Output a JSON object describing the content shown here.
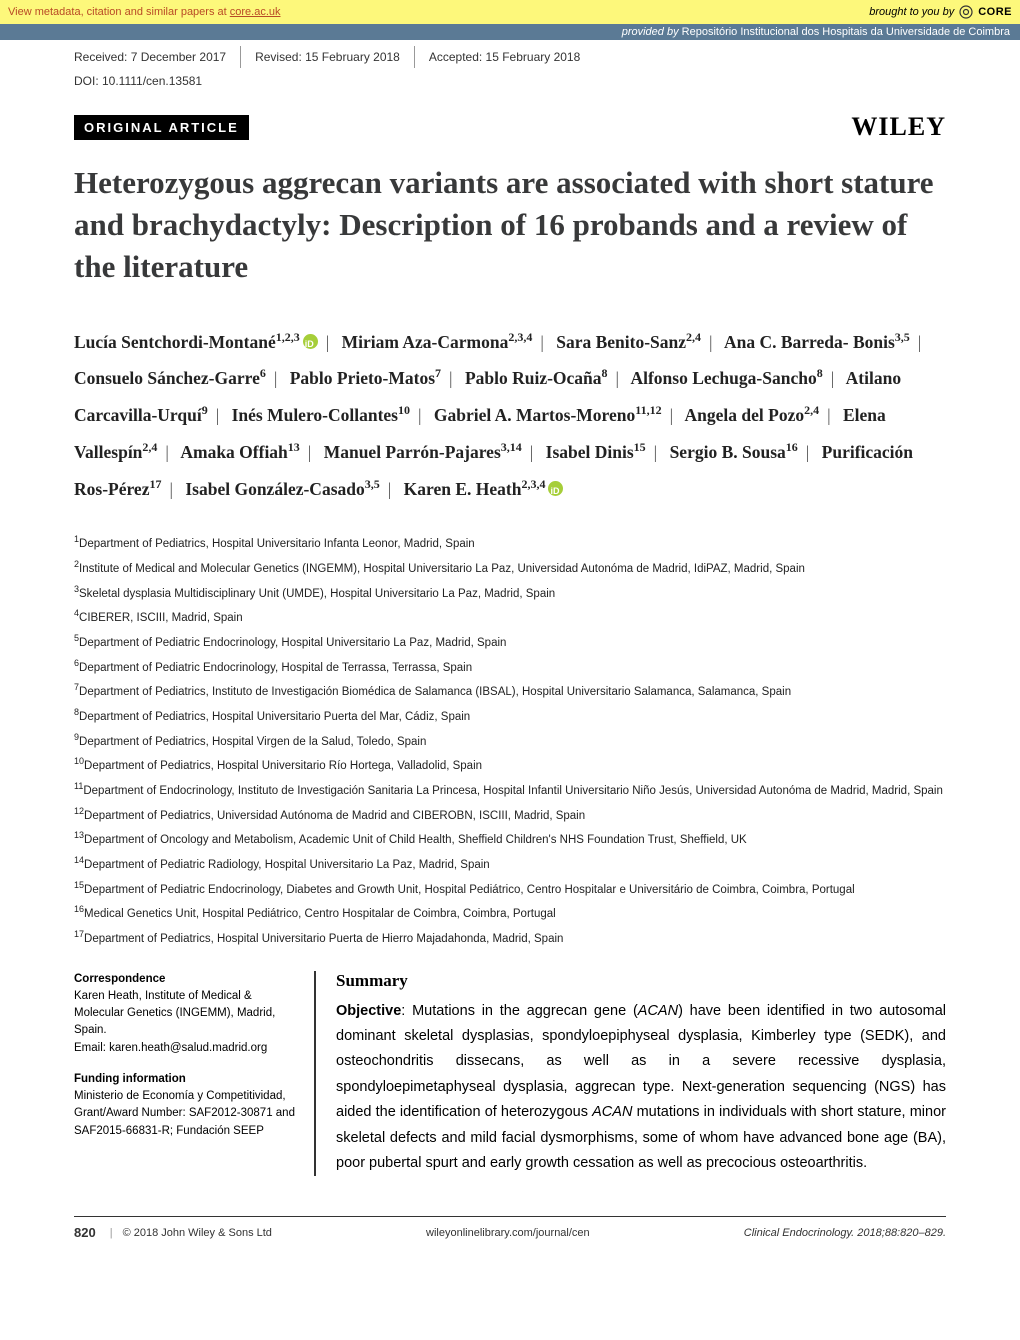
{
  "core": {
    "left_prefix": "View metadata, citation and similar papers at ",
    "left_link": "core.ac.uk",
    "right_prefix": "brought to you by ",
    "right_brand": "CORE"
  },
  "repo": {
    "provided_by": "provided by ",
    "repo_name": "Repositório Institucional dos Hospitais da Universidade de Coimbra"
  },
  "meta": {
    "received": "Received: 7 December 2017",
    "revised": "Revised: 15 February 2018",
    "accepted": "Accepted: 15 February 2018",
    "doi": "DOI: 10.1111/cen.13581"
  },
  "article_type": "ORIGINAL ARTICLE",
  "publisher": "WILEY",
  "title": "Heterozygous aggrecan variants are associated with short stature and brachydactyly: Description of 16 probands and a review of the literature",
  "authors": [
    {
      "name": "Lucía Sentchordi-Montané",
      "sup": "1,2,3",
      "orcid": true
    },
    {
      "name": "Miriam Aza-Carmona",
      "sup": "2,3,4"
    },
    {
      "name": "Sara Benito-Sanz",
      "sup": "2,4"
    },
    {
      "name": "Ana C. Barreda- Bonis",
      "sup": "3,5"
    },
    {
      "name": "Consuelo Sánchez-Garre",
      "sup": "6"
    },
    {
      "name": "Pablo Prieto-Matos",
      "sup": "7"
    },
    {
      "name": "Pablo Ruiz-Ocaña",
      "sup": "8"
    },
    {
      "name": "Alfonso Lechuga-Sancho",
      "sup": "8"
    },
    {
      "name": "Atilano Carcavilla-Urquí",
      "sup": "9"
    },
    {
      "name": "Inés Mulero-Collantes",
      "sup": "10"
    },
    {
      "name": "Gabriel A. Martos-Moreno",
      "sup": "11,12"
    },
    {
      "name": "Angela del Pozo",
      "sup": "2,4"
    },
    {
      "name": "Elena Vallespín",
      "sup": "2,4"
    },
    {
      "name": "Amaka Offiah",
      "sup": "13"
    },
    {
      "name": "Manuel Parrón-Pajares",
      "sup": "3,14"
    },
    {
      "name": "Isabel Dinis",
      "sup": "15"
    },
    {
      "name": "Sergio B. Sousa",
      "sup": "16"
    },
    {
      "name": "Purificación Ros-Pérez",
      "sup": "17"
    },
    {
      "name": "Isabel González-Casado",
      "sup": "3,5"
    },
    {
      "name": "Karen E. Heath",
      "sup": "2,3,4",
      "orcid": true
    }
  ],
  "affiliations": [
    {
      "n": "1",
      "text": "Department of Pediatrics, Hospital Universitario Infanta Leonor, Madrid, Spain"
    },
    {
      "n": "2",
      "text": "Institute of Medical and Molecular Genetics (INGEMM), Hospital Universitario La Paz, Universidad Autonóma de Madrid, IdiPAZ, Madrid, Spain"
    },
    {
      "n": "3",
      "text": "Skeletal dysplasia Multidisciplinary Unit (UMDE), Hospital Universitario La Paz, Madrid, Spain"
    },
    {
      "n": "4",
      "text": "CIBERER, ISCIII, Madrid, Spain"
    },
    {
      "n": "5",
      "text": "Department of Pediatric Endocrinology, Hospital Universitario La Paz, Madrid, Spain"
    },
    {
      "n": "6",
      "text": "Department of Pediatric Endocrinology, Hospital de Terrassa, Terrassa, Spain"
    },
    {
      "n": "7",
      "text": "Department of Pediatrics, Instituto de Investigación Biomédica de Salamanca (IBSAL), Hospital Universitario Salamanca, Salamanca, Spain"
    },
    {
      "n": "8",
      "text": "Department of Pediatrics, Hospital Universitario Puerta del Mar, Cádiz, Spain"
    },
    {
      "n": "9",
      "text": "Department of Pediatrics, Hospital Virgen de la Salud, Toledo, Spain"
    },
    {
      "n": "10",
      "text": "Department of Pediatrics, Hospital Universitario Río Hortega, Valladolid, Spain"
    },
    {
      "n": "11",
      "text": "Department of Endocrinology, Instituto de Investigación Sanitaria La Princesa, Hospital Infantil Universitario Niño Jesús, Universidad Autonóma de Madrid, Madrid, Spain"
    },
    {
      "n": "12",
      "text": "Department of Pediatrics, Universidad Autónoma de Madrid and CIBEROBN, ISCIII, Madrid, Spain"
    },
    {
      "n": "13",
      "text": "Department of Oncology and Metabolism, Academic Unit of Child Health, Sheffield Children's NHS Foundation Trust, Sheffield, UK"
    },
    {
      "n": "14",
      "text": "Department of Pediatric Radiology, Hospital Universitario La Paz, Madrid, Spain"
    },
    {
      "n": "15",
      "text": "Department of Pediatric Endocrinology, Diabetes and Growth Unit, Hospital Pediátrico, Centro Hospitalar e Universitário de Coimbra, Coimbra, Portugal"
    },
    {
      "n": "16",
      "text": "Medical Genetics Unit, Hospital Pediátrico, Centro Hospitalar de Coimbra, Coimbra, Portugal"
    },
    {
      "n": "17",
      "text": "Department of Pediatrics, Hospital Universitario Puerta de Hierro Majadahonda, Madrid, Spain"
    }
  ],
  "correspondence": {
    "heading": "Correspondence",
    "body1": "Karen Heath, Institute of Medical & Molecular Genetics (INGEMM), Madrid, Spain.",
    "body2": "Email: karen.heath@salud.madrid.org"
  },
  "funding": {
    "heading": "Funding information",
    "body": "Ministerio de Economía y Competitividad, Grant/Award Number: SAF2012-30871 and SAF2015-66831-R; Fundación SEEP"
  },
  "summary": {
    "heading": "Summary",
    "objective_label": "Objective",
    "body": ": Mutations in the aggrecan gene (ACAN) have been identified in two autosomal dominant skeletal dysplasias, spondyloepiphyseal dysplasia, Kimberley type (SEDK), and osteochondritis dissecans, as well as in a severe recessive dysplasia, spondyloepimetaphyseal dysplasia, aggrecan type. Next-generation sequencing (NGS) has aided the identification of heterozygous ACAN mutations in individuals with short stature, minor skeletal defects and mild facial dysmorphisms, some of whom have advanced bone age (BA), poor pubertal spurt and early growth cessation as well as precocious osteoarthritis."
  },
  "footer": {
    "page": "820",
    "copyright": "© 2018 John Wiley & Sons Ltd",
    "url": "wileyonlinelibrary.com/journal/cen",
    "citation": "Clinical Endocrinology. 2018;88:820–829."
  },
  "colors": {
    "core_bg": "#fdf87b",
    "core_text": "#b84a26",
    "repo_bg": "#5b7a95",
    "orcid": "#a6ce39"
  }
}
